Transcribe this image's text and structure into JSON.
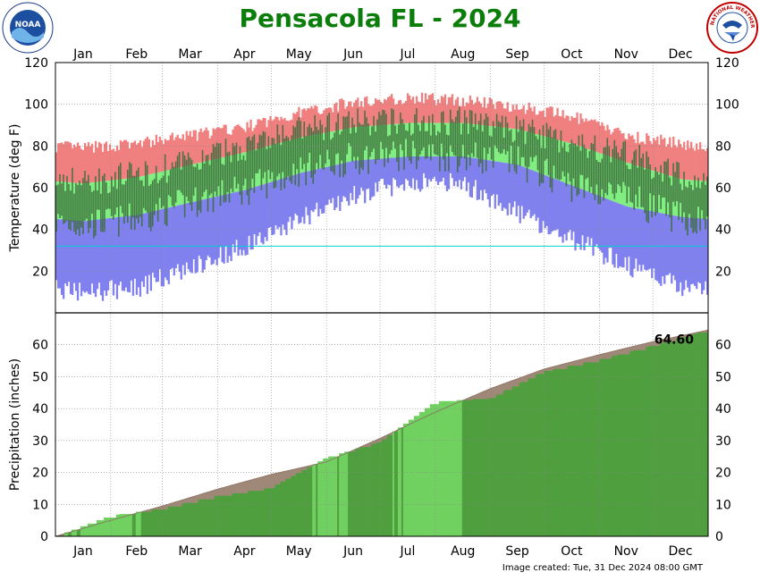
{
  "header": {
    "title": "Pensacola FL - 2024"
  },
  "footer": {
    "created": "Image created: Tue, 31 Dec 2024 08:00 GMT"
  },
  "logos": {
    "left": "noaa-logo",
    "right": "nws-logo",
    "left_text": "NOAA",
    "right_text": "NATIONAL WEATHER SERVICE"
  },
  "colors": {
    "record_high": "#f08080",
    "normal_range": "#80ee80",
    "record_low": "#8080ee",
    "observed": "#3a6a3a",
    "freezing_line": "#00d0d0",
    "precip_observed": "#4f9f3f",
    "precip_normal": "#a08878",
    "precip_above": "#70d060"
  },
  "chart_data": [
    {
      "type": "area",
      "name": "temperature",
      "ylabel": "Temperature (deg F)",
      "ylim": [
        0,
        120
      ],
      "yticks": [
        20,
        40,
        60,
        80,
        100,
        120
      ],
      "months": [
        "Jan",
        "Feb",
        "Mar",
        "Apr",
        "May",
        "Jun",
        "Jul",
        "Aug",
        "Sep",
        "Oct",
        "Nov",
        "Dec"
      ],
      "freezing_line": 32,
      "grid": true,
      "normal_high_monthly": [
        62,
        65,
        71,
        77,
        84,
        89,
        91,
        91,
        88,
        81,
        72,
        64
      ],
      "normal_low_monthly": [
        44,
        47,
        53,
        59,
        67,
        73,
        75,
        75,
        71,
        61,
        51,
        46
      ],
      "record_high_monthly": [
        79,
        81,
        85,
        89,
        96,
        101,
        103,
        102,
        99,
        94,
        85,
        81
      ],
      "record_low_monthly": [
        10,
        12,
        22,
        32,
        45,
        56,
        63,
        62,
        48,
        35,
        23,
        13
      ],
      "observed_high_monthly": [
        63,
        66,
        72,
        80,
        87,
        91,
        92,
        92,
        88,
        82,
        76,
        65
      ],
      "observed_low_monthly": [
        42,
        45,
        53,
        59,
        68,
        74,
        76,
        75,
        72,
        61,
        55,
        45
      ]
    },
    {
      "type": "area",
      "name": "precipitation",
      "ylabel": "Precipitation (inches)",
      "ylim": [
        0,
        70
      ],
      "yticks": [
        0,
        10,
        20,
        30,
        40,
        50,
        60
      ],
      "months": [
        "Jan",
        "Feb",
        "Mar",
        "Apr",
        "May",
        "Jun",
        "Jul",
        "Aug",
        "Sep",
        "Oct",
        "Nov",
        "Dec"
      ],
      "grid": true,
      "normal_cumulative_month_end": [
        5.0,
        9.5,
        14.8,
        19.4,
        23.3,
        30.7,
        38.9,
        46.3,
        52.4,
        56.9,
        61.0,
        64.6
      ],
      "observed_cumulative_month_end": [
        6.5,
        8.8,
        12.7,
        15.3,
        24.7,
        29.6,
        42.2,
        43.3,
        51.7,
        55.3,
        59.8,
        64.6
      ],
      "total_label": "64.60"
    }
  ]
}
